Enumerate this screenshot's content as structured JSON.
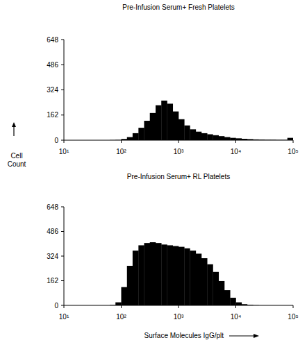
{
  "chart_data": [
    {
      "type": "histogram",
      "title": "Pre-Infusion Serum+ Fresh Platelets",
      "y_label": "Cell Count",
      "bins": [
        31.6,
        39.8,
        50.1,
        63.1,
        79.4,
        100,
        126,
        158,
        200,
        251,
        316,
        398,
        501,
        631,
        794,
        1000,
        1260,
        1580,
        2000,
        2510,
        3160,
        3980,
        5010,
        6310,
        7940,
        10000,
        12600,
        15800,
        20000,
        25100,
        31600,
        39800,
        50100,
        63100,
        79400,
        100000
      ],
      "counts": [
        0,
        0,
        0,
        1,
        2,
        8,
        20,
        45,
        80,
        125,
        175,
        225,
        255,
        235,
        185,
        135,
        95,
        70,
        55,
        45,
        38,
        32,
        26,
        20,
        15,
        12,
        9,
        7,
        5,
        4,
        3,
        3,
        2,
        2,
        15
      ],
      "color": "#000000",
      "log": "x",
      "grid": false,
      "xlim": [
        10,
        100000
      ],
      "xticks": [
        {
          "value": 10,
          "label": "10¹"
        },
        {
          "value": 100,
          "label": "10²"
        },
        {
          "value": 1000,
          "label": "10³"
        },
        {
          "value": 10000,
          "label": "10⁴"
        },
        {
          "value": 100000,
          "label": "10⁵"
        }
      ],
      "ylim": [
        0,
        648
      ],
      "yticks": [
        0,
        162,
        324,
        486,
        648
      ]
    },
    {
      "type": "histogram",
      "title": "Pre-Infusion Serum+ RL Platelets",
      "x_label": "Surface Molecules IgG/plt",
      "bins": [
        31.6,
        39.8,
        50.1,
        63.1,
        79.4,
        100,
        126,
        158,
        200,
        251,
        316,
        398,
        501,
        631,
        794,
        1000,
        1260,
        1580,
        2000,
        2510,
        3160,
        3980,
        5010,
        6310,
        7940,
        10000,
        12600,
        15800,
        20000,
        25100,
        31600,
        39800,
        50100,
        63100,
        79400,
        100000
      ],
      "counts": [
        0,
        0,
        0,
        2,
        20,
        120,
        260,
        360,
        395,
        410,
        415,
        410,
        400,
        395,
        390,
        385,
        375,
        360,
        340,
        310,
        270,
        220,
        160,
        100,
        50,
        20,
        8,
        3,
        1,
        0,
        0,
        0,
        0,
        0,
        0
      ],
      "color": "#000000",
      "log": "x",
      "grid": false,
      "xlim": [
        10,
        100000
      ],
      "xticks": [
        {
          "value": 10,
          "label": "10¹"
        },
        {
          "value": 100,
          "label": "10²"
        },
        {
          "value": 1000,
          "label": "10³"
        },
        {
          "value": 10000,
          "label": "10⁴"
        },
        {
          "value": 100000,
          "label": "10⁵"
        }
      ],
      "ylim": [
        0,
        648
      ],
      "yticks": [
        0,
        162,
        324,
        486,
        648
      ]
    }
  ]
}
